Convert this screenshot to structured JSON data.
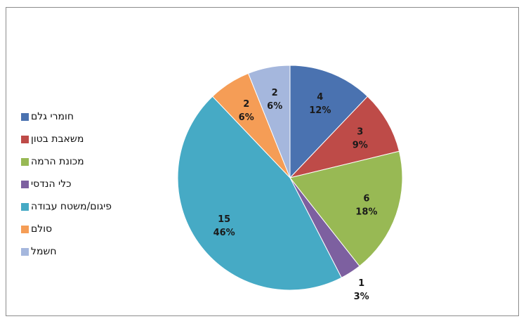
{
  "chart_data": {
    "type": "pie",
    "title": "",
    "categories": [
      "חומרי גלם",
      "משאבת בטון",
      "מכונת הרמה",
      "כלי הנדסי",
      "פיגום/משטח עבודה",
      "סולם",
      "חשמל"
    ],
    "values": [
      4,
      3,
      6,
      1,
      15,
      2,
      2
    ],
    "percent_labels": [
      "12%",
      "9%",
      "18%",
      "3%",
      "46%",
      "6%",
      "6%"
    ],
    "colors": [
      "#4a72b0",
      "#be4b48",
      "#98b954",
      "#7d60a0",
      "#46aac5",
      "#f59d56",
      "#a5b7dd"
    ],
    "legend_position": "left",
    "start_angle_deg": 0,
    "direction": "clockwise"
  }
}
